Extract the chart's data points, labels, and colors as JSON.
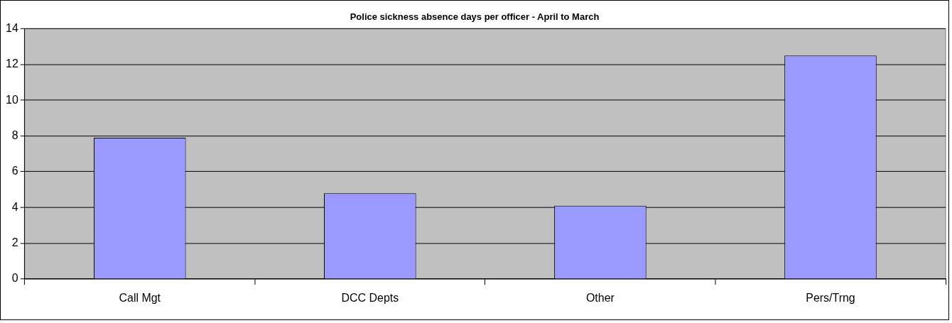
{
  "chart_data": {
    "type": "bar",
    "title": "Police sickness absence days per officer - April to March",
    "categories": [
      "Call Mgt",
      "DCC Depts",
      "Other",
      "Pers/Trng"
    ],
    "values": [
      7.9,
      4.8,
      4.1,
      12.5
    ],
    "color": "#9999ff",
    "ylim": [
      0,
      14
    ],
    "yticks": [
      0,
      2,
      4,
      6,
      8,
      10,
      12,
      14
    ],
    "grid": "y",
    "legend": false
  }
}
